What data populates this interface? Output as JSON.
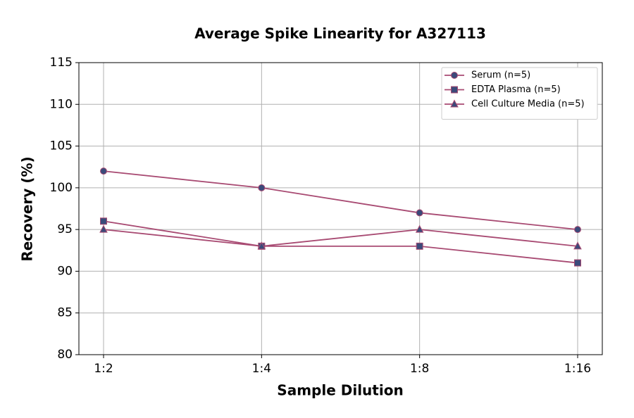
{
  "chart_data": {
    "type": "line",
    "title": "Average Spike Linearity for A327113",
    "x_label": "Sample Dilution",
    "y_label": "Recovery (%)",
    "categories": [
      "1:2",
      "1:4",
      "1:8",
      "1:16"
    ],
    "series": [
      {
        "name": "Serum (n=5)",
        "color": "#a84a72",
        "marker_color": "#3b4a7a",
        "marker": "circle",
        "values": [
          102,
          100,
          97,
          95
        ]
      },
      {
        "name": "EDTA Plasma (n=5)",
        "color": "#a84a72",
        "marker_color": "#3b4a7a",
        "marker": "square",
        "values": [
          96,
          93,
          93,
          91
        ]
      },
      {
        "name": "Cell Culture Media (n=5)",
        "color": "#a84a72",
        "marker_color": "#3b4a7a",
        "marker": "triangle",
        "values": [
          95,
          93,
          95,
          93
        ]
      }
    ],
    "ylim": [
      80,
      115
    ],
    "yticks": [
      80,
      85,
      90,
      95,
      100,
      105,
      110,
      115
    ],
    "grid": true,
    "legend": "upper right"
  }
}
